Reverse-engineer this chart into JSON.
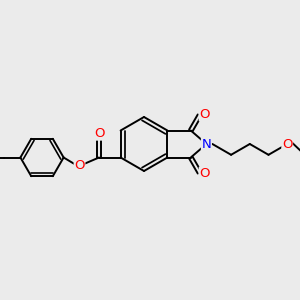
{
  "bg_color": "#ebebeb",
  "bond_color": "#000000",
  "bond_width": 1.4,
  "atom_colors": {
    "O": "#ff0000",
    "N": "#0000ff"
  },
  "font_size": 8.5,
  "fig_size": [
    3.0,
    3.0
  ],
  "dpi": 100
}
